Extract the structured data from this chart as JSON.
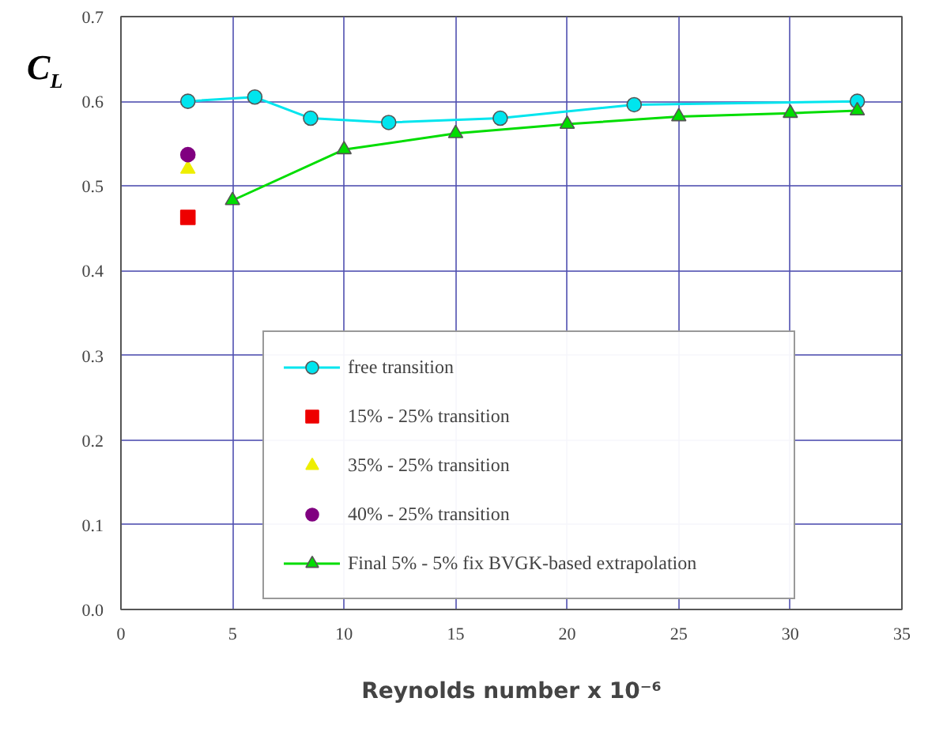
{
  "chart_data": {
    "type": "scatter",
    "xlabel": "Reynolds number x 10⁻⁶",
    "ylabel": "C$_{L}$",
    "xlim": [
      0,
      35
    ],
    "xticks": [
      0,
      5,
      10,
      15,
      20,
      25,
      30,
      35
    ],
    "ylim": [
      0,
      0.7
    ],
    "yticks": [
      {
        "value": 0,
        "label": "0.0"
      },
      0.1,
      0.2,
      0.3,
      0.4,
      0.5,
      0.6,
      0.7
    ],
    "grid": true,
    "legend": "bottom",
    "series": [
      {
        "name": "free transition",
        "type": "line",
        "marker": "circle",
        "color": "#00e5ee",
        "x": [
          3,
          6,
          8.5,
          12,
          17,
          23,
          33
        ],
        "values": [
          0.6,
          0.605,
          0.58,
          0.575,
          0.58,
          0.596,
          0.6
        ]
      },
      {
        "name": "15% - 25% transition",
        "marker": "square",
        "color": "#ee0000",
        "x": [
          3
        ],
        "values": [
          0.463
        ]
      },
      {
        "name": "35% - 25% transition",
        "marker": "triangle",
        "color": "#eeee00",
        "x": [
          3
        ],
        "values": [
          0.52
        ]
      },
      {
        "name": "40% - 25% transition",
        "marker": "circle",
        "color": "#800080",
        "x": [
          3
        ],
        "values": [
          0.537
        ]
      },
      {
        "name": "Final 5% - 5% fix BVGK-based extrapolation",
        "type": "line",
        "marker": "triangle",
        "color": "#00dd00",
        "x": [
          5,
          10,
          15,
          20,
          25,
          30,
          33
        ],
        "values": [
          0.483,
          0.543,
          0.562,
          0.573,
          0.582,
          0.586,
          0.589
        ]
      }
    ]
  }
}
